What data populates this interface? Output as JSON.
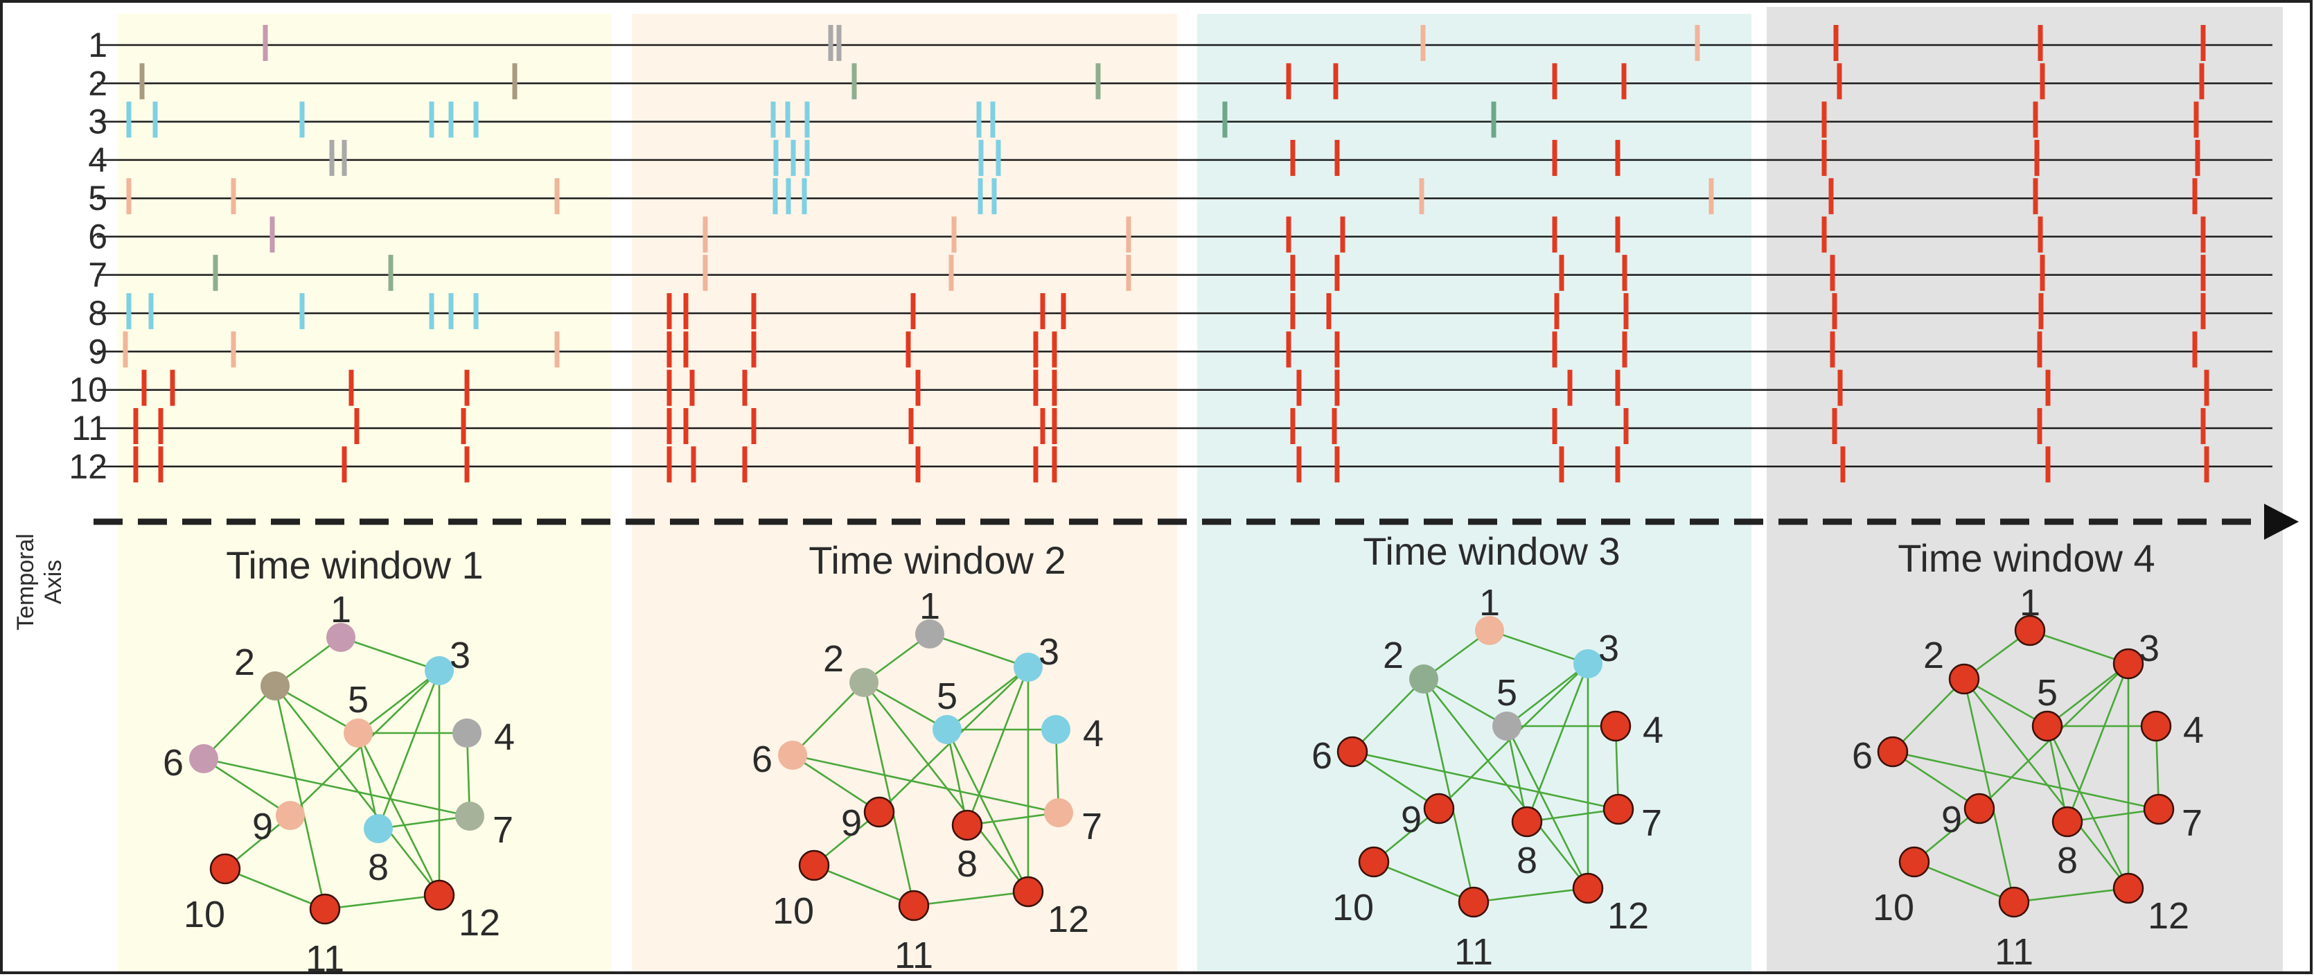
{
  "axis_label": [
    "Temporal",
    "Axis"
  ],
  "neuron_labels": [
    "1",
    "2",
    "3",
    "4",
    "5",
    "6",
    "7",
    "8",
    "9",
    "10",
    "11",
    "12"
  ],
  "colors": {
    "window_backgrounds": [
      "#fdfde8",
      "#fef4e8",
      "#e3f3f2",
      "#e2e2e2"
    ],
    "spike_colors": {
      "pink": "#c69ab0",
      "grey": "#a9a9a9",
      "olive": "#a99b80",
      "cyan": "#7fd0e2",
      "salmon": "#f0b59a",
      "green": "#8fae8f",
      "teal": "#6ea78a",
      "red": "#e03a22"
    },
    "edge": "#4aa83a"
  },
  "windows": [
    {
      "title": "Time window 1",
      "node_colors": [
        "#c69ab0",
        "#a99b80",
        "#7fd0e2",
        "#a9a9a9",
        "#f0b59a",
        "#c69ab0",
        "#a6b39a",
        "#7fd0e2",
        "#f0b59a",
        "#e03a22",
        "#e03a22",
        "#e03a22"
      ]
    },
    {
      "title": "Time window 2",
      "node_colors": [
        "#a9a9a9",
        "#a6b39a",
        "#7fd0e2",
        "#7fd0e2",
        "#7fd0e2",
        "#f0b59a",
        "#f0b59a",
        "#e03a22",
        "#e03a22",
        "#e03a22",
        "#e03a22",
        "#e03a22"
      ]
    },
    {
      "title": "Time window 3",
      "node_colors": [
        "#f0b59a",
        "#8fae8f",
        "#7fd0e2",
        "#e03a22",
        "#a9a9a9",
        "#e03a22",
        "#e03a22",
        "#e03a22",
        "#e03a22",
        "#e03a22",
        "#e03a22",
        "#e03a22"
      ]
    },
    {
      "title": "Time window 4",
      "node_colors": [
        "#e03a22",
        "#e03a22",
        "#e03a22",
        "#e03a22",
        "#e03a22",
        "#e03a22",
        "#e03a22",
        "#e03a22",
        "#e03a22",
        "#e03a22",
        "#e03a22",
        "#e03a22"
      ]
    }
  ],
  "graph_edges": [
    [
      1,
      2
    ],
    [
      1,
      3
    ],
    [
      2,
      5
    ],
    [
      2,
      6
    ],
    [
      2,
      11
    ],
    [
      2,
      12
    ],
    [
      3,
      5
    ],
    [
      3,
      8
    ],
    [
      3,
      9
    ],
    [
      3,
      12
    ],
    [
      5,
      4
    ],
    [
      4,
      7
    ],
    [
      5,
      8
    ],
    [
      5,
      12
    ],
    [
      6,
      7
    ],
    [
      6,
      9
    ],
    [
      9,
      10
    ],
    [
      10,
      11
    ],
    [
      11,
      12
    ],
    [
      8,
      7
    ]
  ],
  "spikes": [
    {
      "row": 1,
      "t": 383,
      "c": "pink"
    },
    {
      "row": 1,
      "t": 1199,
      "c": "grey"
    },
    {
      "row": 1,
      "t": 1211,
      "c": "grey"
    },
    {
      "row": 1,
      "t": 2054,
      "c": "salmon"
    },
    {
      "row": 1,
      "t": 2450,
      "c": "salmon"
    },
    {
      "row": 1,
      "t": 2650,
      "c": "red"
    },
    {
      "row": 1,
      "t": 2945,
      "c": "red"
    },
    {
      "row": 1,
      "t": 3180,
      "c": "red"
    },
    {
      "row": 2,
      "t": 205,
      "c": "olive"
    },
    {
      "row": 2,
      "t": 743,
      "c": "olive"
    },
    {
      "row": 2,
      "t": 1233,
      "c": "green"
    },
    {
      "row": 2,
      "t": 1585,
      "c": "green"
    },
    {
      "row": 2,
      "t": 1860,
      "c": "red"
    },
    {
      "row": 2,
      "t": 1928,
      "c": "red"
    },
    {
      "row": 2,
      "t": 2244,
      "c": "red"
    },
    {
      "row": 2,
      "t": 2344,
      "c": "red"
    },
    {
      "row": 2,
      "t": 2655,
      "c": "red"
    },
    {
      "row": 2,
      "t": 2948,
      "c": "red"
    },
    {
      "row": 2,
      "t": 3178,
      "c": "red"
    },
    {
      "row": 3,
      "t": 186,
      "c": "cyan"
    },
    {
      "row": 3,
      "t": 224,
      "c": "cyan"
    },
    {
      "row": 3,
      "t": 436,
      "c": "cyan"
    },
    {
      "row": 3,
      "t": 623,
      "c": "cyan"
    },
    {
      "row": 3,
      "t": 651,
      "c": "cyan"
    },
    {
      "row": 3,
      "t": 687,
      "c": "cyan"
    },
    {
      "row": 3,
      "t": 1116,
      "c": "cyan"
    },
    {
      "row": 3,
      "t": 1137,
      "c": "cyan"
    },
    {
      "row": 3,
      "t": 1165,
      "c": "cyan"
    },
    {
      "row": 3,
      "t": 1413,
      "c": "cyan"
    },
    {
      "row": 3,
      "t": 1433,
      "c": "cyan"
    },
    {
      "row": 3,
      "t": 1768,
      "c": "teal"
    },
    {
      "row": 3,
      "t": 2156,
      "c": "teal"
    },
    {
      "row": 3,
      "t": 2633,
      "c": "red"
    },
    {
      "row": 3,
      "t": 2938,
      "c": "red"
    },
    {
      "row": 3,
      "t": 3170,
      "c": "red"
    },
    {
      "row": 4,
      "t": 479,
      "c": "grey"
    },
    {
      "row": 4,
      "t": 497,
      "c": "grey"
    },
    {
      "row": 4,
      "t": 1120,
      "c": "cyan"
    },
    {
      "row": 4,
      "t": 1145,
      "c": "cyan"
    },
    {
      "row": 4,
      "t": 1165,
      "c": "cyan"
    },
    {
      "row": 4,
      "t": 1416,
      "c": "cyan"
    },
    {
      "row": 4,
      "t": 1441,
      "c": "cyan"
    },
    {
      "row": 4,
      "t": 1866,
      "c": "red"
    },
    {
      "row": 4,
      "t": 1930,
      "c": "red"
    },
    {
      "row": 4,
      "t": 2244,
      "c": "red"
    },
    {
      "row": 4,
      "t": 2335,
      "c": "red"
    },
    {
      "row": 4,
      "t": 2633,
      "c": "red"
    },
    {
      "row": 4,
      "t": 2940,
      "c": "red"
    },
    {
      "row": 4,
      "t": 3172,
      "c": "red"
    },
    {
      "row": 5,
      "t": 186,
      "c": "salmon"
    },
    {
      "row": 5,
      "t": 337,
      "c": "salmon"
    },
    {
      "row": 5,
      "t": 804,
      "c": "salmon"
    },
    {
      "row": 5,
      "t": 1119,
      "c": "cyan"
    },
    {
      "row": 5,
      "t": 1138,
      "c": "cyan"
    },
    {
      "row": 5,
      "t": 1161,
      "c": "cyan"
    },
    {
      "row": 5,
      "t": 1415,
      "c": "cyan"
    },
    {
      "row": 5,
      "t": 1435,
      "c": "cyan"
    },
    {
      "row": 5,
      "t": 2052,
      "c": "salmon"
    },
    {
      "row": 5,
      "t": 2470,
      "c": "salmon"
    },
    {
      "row": 5,
      "t": 2643,
      "c": "red"
    },
    {
      "row": 5,
      "t": 2938,
      "c": "red"
    },
    {
      "row": 5,
      "t": 3168,
      "c": "red"
    },
    {
      "row": 6,
      "t": 393,
      "c": "pink"
    },
    {
      "row": 6,
      "t": 1018,
      "c": "salmon"
    },
    {
      "row": 6,
      "t": 1377,
      "c": "salmon"
    },
    {
      "row": 6,
      "t": 1629,
      "c": "salmon"
    },
    {
      "row": 6,
      "t": 1860,
      "c": "red"
    },
    {
      "row": 6,
      "t": 1938,
      "c": "red"
    },
    {
      "row": 6,
      "t": 2244,
      "c": "red"
    },
    {
      "row": 6,
      "t": 2335,
      "c": "red"
    },
    {
      "row": 6,
      "t": 2633,
      "c": "red"
    },
    {
      "row": 6,
      "t": 2945,
      "c": "red"
    },
    {
      "row": 6,
      "t": 3180,
      "c": "red"
    },
    {
      "row": 7,
      "t": 311,
      "c": "green"
    },
    {
      "row": 7,
      "t": 564,
      "c": "green"
    },
    {
      "row": 7,
      "t": 1018,
      "c": "salmon"
    },
    {
      "row": 7,
      "t": 1373,
      "c": "salmon"
    },
    {
      "row": 7,
      "t": 1629,
      "c": "salmon"
    },
    {
      "row": 7,
      "t": 1866,
      "c": "red"
    },
    {
      "row": 7,
      "t": 1930,
      "c": "red"
    },
    {
      "row": 7,
      "t": 2254,
      "c": "red"
    },
    {
      "row": 7,
      "t": 2345,
      "c": "red"
    },
    {
      "row": 7,
      "t": 2645,
      "c": "red"
    },
    {
      "row": 7,
      "t": 2948,
      "c": "red"
    },
    {
      "row": 7,
      "t": 3180,
      "c": "red"
    },
    {
      "row": 8,
      "t": 186,
      "c": "cyan"
    },
    {
      "row": 8,
      "t": 218,
      "c": "cyan"
    },
    {
      "row": 8,
      "t": 436,
      "c": "cyan"
    },
    {
      "row": 8,
      "t": 623,
      "c": "cyan"
    },
    {
      "row": 8,
      "t": 651,
      "c": "cyan"
    },
    {
      "row": 8,
      "t": 687,
      "c": "cyan"
    },
    {
      "row": 8,
      "t": 966,
      "c": "red"
    },
    {
      "row": 8,
      "t": 990,
      "c": "red"
    },
    {
      "row": 8,
      "t": 1088,
      "c": "red"
    },
    {
      "row": 8,
      "t": 1318,
      "c": "red"
    },
    {
      "row": 8,
      "t": 1505,
      "c": "red"
    },
    {
      "row": 8,
      "t": 1535,
      "c": "red"
    },
    {
      "row": 8,
      "t": 1866,
      "c": "red"
    },
    {
      "row": 8,
      "t": 1918,
      "c": "red"
    },
    {
      "row": 8,
      "t": 2247,
      "c": "red"
    },
    {
      "row": 8,
      "t": 2347,
      "c": "red"
    },
    {
      "row": 8,
      "t": 2648,
      "c": "red"
    },
    {
      "row": 8,
      "t": 2946,
      "c": "red"
    },
    {
      "row": 8,
      "t": 3180,
      "c": "red"
    },
    {
      "row": 9,
      "t": 181,
      "c": "salmon"
    },
    {
      "row": 9,
      "t": 337,
      "c": "salmon"
    },
    {
      "row": 9,
      "t": 804,
      "c": "salmon"
    },
    {
      "row": 9,
      "t": 966,
      "c": "red"
    },
    {
      "row": 9,
      "t": 990,
      "c": "red"
    },
    {
      "row": 9,
      "t": 1088,
      "c": "red"
    },
    {
      "row": 9,
      "t": 1311,
      "c": "red"
    },
    {
      "row": 9,
      "t": 1495,
      "c": "red"
    },
    {
      "row": 9,
      "t": 1522,
      "c": "red"
    },
    {
      "row": 9,
      "t": 1860,
      "c": "red"
    },
    {
      "row": 9,
      "t": 1930,
      "c": "red"
    },
    {
      "row": 9,
      "t": 2244,
      "c": "red"
    },
    {
      "row": 9,
      "t": 2345,
      "c": "red"
    },
    {
      "row": 9,
      "t": 2645,
      "c": "red"
    },
    {
      "row": 9,
      "t": 2944,
      "c": "red"
    },
    {
      "row": 9,
      "t": 3168,
      "c": "red"
    },
    {
      "row": 10,
      "t": 208,
      "c": "red"
    },
    {
      "row": 10,
      "t": 249,
      "c": "red"
    },
    {
      "row": 10,
      "t": 507,
      "c": "red"
    },
    {
      "row": 10,
      "t": 674,
      "c": "red"
    },
    {
      "row": 10,
      "t": 966,
      "c": "red"
    },
    {
      "row": 10,
      "t": 999,
      "c": "red"
    },
    {
      "row": 10,
      "t": 1075,
      "c": "red"
    },
    {
      "row": 10,
      "t": 1325,
      "c": "red"
    },
    {
      "row": 10,
      "t": 1495,
      "c": "red"
    },
    {
      "row": 10,
      "t": 1522,
      "c": "red"
    },
    {
      "row": 10,
      "t": 1875,
      "c": "red"
    },
    {
      "row": 10,
      "t": 1930,
      "c": "red"
    },
    {
      "row": 10,
      "t": 2266,
      "c": "red"
    },
    {
      "row": 10,
      "t": 2335,
      "c": "red"
    },
    {
      "row": 10,
      "t": 2656,
      "c": "red"
    },
    {
      "row": 10,
      "t": 2956,
      "c": "red"
    },
    {
      "row": 10,
      "t": 3185,
      "c": "red"
    },
    {
      "row": 11,
      "t": 196,
      "c": "red"
    },
    {
      "row": 11,
      "t": 232,
      "c": "red"
    },
    {
      "row": 11,
      "t": 515,
      "c": "red"
    },
    {
      "row": 11,
      "t": 669,
      "c": "red"
    },
    {
      "row": 11,
      "t": 966,
      "c": "red"
    },
    {
      "row": 11,
      "t": 990,
      "c": "red"
    },
    {
      "row": 11,
      "t": 1088,
      "c": "red"
    },
    {
      "row": 11,
      "t": 1315,
      "c": "red"
    },
    {
      "row": 11,
      "t": 1505,
      "c": "red"
    },
    {
      "row": 11,
      "t": 1522,
      "c": "red"
    },
    {
      "row": 11,
      "t": 1866,
      "c": "red"
    },
    {
      "row": 11,
      "t": 1926,
      "c": "red"
    },
    {
      "row": 11,
      "t": 2244,
      "c": "red"
    },
    {
      "row": 11,
      "t": 2347,
      "c": "red"
    },
    {
      "row": 11,
      "t": 2648,
      "c": "red"
    },
    {
      "row": 11,
      "t": 2944,
      "c": "red"
    },
    {
      "row": 11,
      "t": 3180,
      "c": "red"
    },
    {
      "row": 12,
      "t": 196,
      "c": "red"
    },
    {
      "row": 12,
      "t": 232,
      "c": "red"
    },
    {
      "row": 12,
      "t": 497,
      "c": "red"
    },
    {
      "row": 12,
      "t": 674,
      "c": "red"
    },
    {
      "row": 12,
      "t": 966,
      "c": "red"
    },
    {
      "row": 12,
      "t": 1001,
      "c": "red"
    },
    {
      "row": 12,
      "t": 1075,
      "c": "red"
    },
    {
      "row": 12,
      "t": 1325,
      "c": "red"
    },
    {
      "row": 12,
      "t": 1495,
      "c": "red"
    },
    {
      "row": 12,
      "t": 1522,
      "c": "red"
    },
    {
      "row": 12,
      "t": 1875,
      "c": "red"
    },
    {
      "row": 12,
      "t": 1930,
      "c": "red"
    },
    {
      "row": 12,
      "t": 2254,
      "c": "red"
    },
    {
      "row": 12,
      "t": 2335,
      "c": "red"
    },
    {
      "row": 12,
      "t": 2660,
      "c": "red"
    },
    {
      "row": 12,
      "t": 2956,
      "c": "red"
    },
    {
      "row": 12,
      "t": 3185,
      "c": "red"
    }
  ]
}
